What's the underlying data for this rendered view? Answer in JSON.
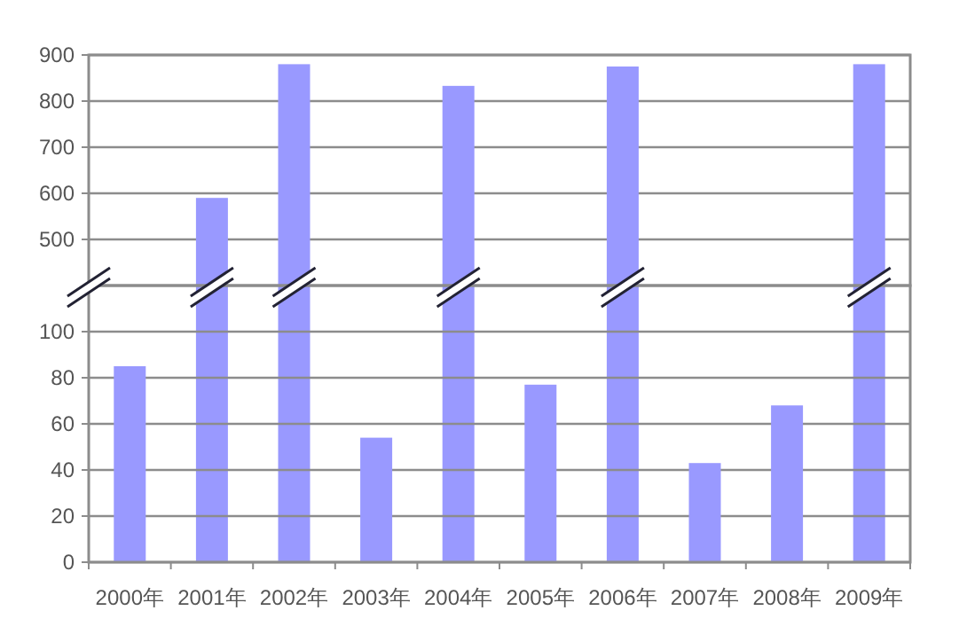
{
  "chart_data": [
    {
      "type": "bar",
      "categories": [
        null,
        null,
        null,
        null,
        null,
        null,
        null,
        null,
        null,
        null
      ],
      "values": [
        null,
        590,
        880,
        null,
        833,
        null,
        875,
        null,
        null,
        880
      ],
      "color": "#9999ff",
      "ylim": [
        400,
        900
      ],
      "yticks": [
        500,
        600,
        700,
        800,
        900
      ],
      "grid": "y",
      "tick_labels": "y"
    },
    {
      "type": "bar",
      "categories": [
        "2000年",
        "2001年",
        "2002年",
        "2003年",
        "2004年",
        "2005年",
        "2006年",
        "2007年",
        "2008年",
        "2009年"
      ],
      "values": [
        85,
        null,
        null,
        54,
        null,
        77,
        null,
        43,
        68,
        null
      ],
      "color": "#9999ff",
      "ylim": [
        0,
        120
      ],
      "yticks": [
        0,
        20,
        40,
        60,
        80,
        100
      ],
      "grid": "y"
    }
  ]
}
